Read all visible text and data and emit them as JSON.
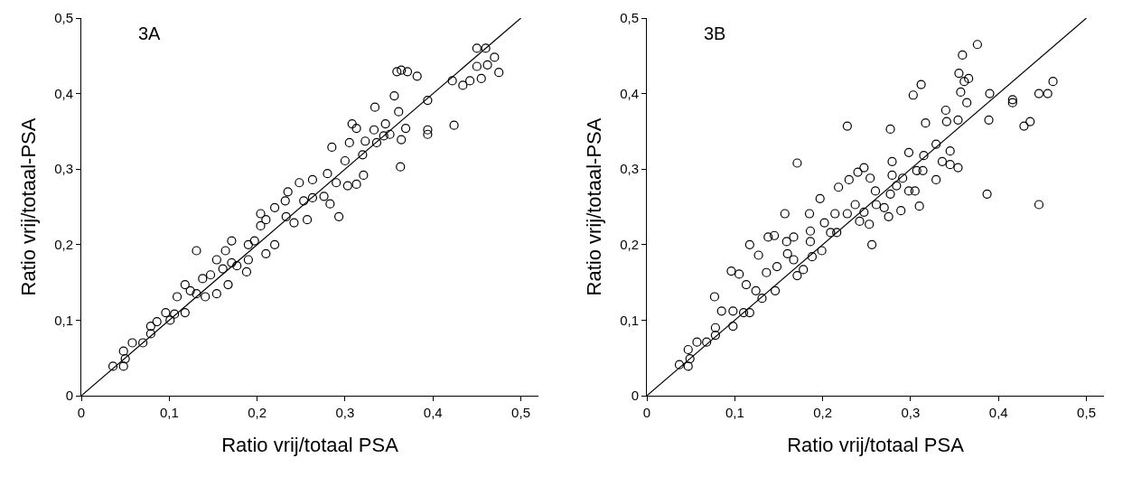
{
  "chart_data": [
    {
      "type": "scatter",
      "annotations": [
        "3A"
      ],
      "xlabel": "Ratio vrij/totaal PSA",
      "ylabel": "Ratio vrij/totaal-PSA",
      "xlim": [
        0,
        0.52
      ],
      "ylim": [
        0,
        0.5
      ],
      "xticks": [
        0,
        {
          "value": 0.1,
          "label": "0,1"
        },
        {
          "value": 0.2,
          "label": "0,2"
        },
        {
          "value": 0.3,
          "label": "0,3"
        },
        {
          "value": 0.4,
          "label": "0,4"
        },
        {
          "value": 0.5,
          "label": "0,5"
        }
      ],
      "yticks": [
        0,
        {
          "value": 0.1,
          "label": "0,1"
        },
        {
          "value": 0.2,
          "label": "0,2"
        },
        {
          "value": 0.3,
          "label": "0,3"
        },
        {
          "value": 0.4,
          "label": "0,4"
        },
        {
          "value": 0.5,
          "label": "0,5"
        }
      ],
      "grid": false,
      "marker": "circle",
      "series": [
        {
          "color": "#000000",
          "x": [
            0.036,
            0.048,
            0.048,
            0.05,
            0.058,
            0.07,
            0.079,
            0.079,
            0.086,
            0.096,
            0.101,
            0.106,
            0.118,
            0.109,
            0.118,
            0.124,
            0.131,
            0.131,
            0.141,
            0.138,
            0.147,
            0.154,
            0.154,
            0.161,
            0.167,
            0.171,
            0.171,
            0.164,
            0.177,
            0.188,
            0.19,
            0.19,
            0.197,
            0.204,
            0.204,
            0.21,
            0.21,
            0.22,
            0.22,
            0.232,
            0.235,
            0.233,
            0.242,
            0.257,
            0.248,
            0.263,
            0.253,
            0.263,
            0.276,
            0.283,
            0.293,
            0.285,
            0.28,
            0.29,
            0.303,
            0.313,
            0.321,
            0.3,
            0.305,
            0.308,
            0.313,
            0.32,
            0.323,
            0.333,
            0.336,
            0.334,
            0.346,
            0.344,
            0.351,
            0.356,
            0.359,
            0.364,
            0.371,
            0.382,
            0.361,
            0.363,
            0.364,
            0.369,
            0.394,
            0.394,
            0.394,
            0.422,
            0.424,
            0.434,
            0.442,
            0.45,
            0.45,
            0.46,
            0.47,
            0.462,
            0.475,
            0.455
          ],
          "values": [
            0.039,
            0.039,
            0.059,
            0.049,
            0.07,
            0.07,
            0.082,
            0.092,
            0.098,
            0.11,
            0.1,
            0.108,
            0.11,
            0.131,
            0.147,
            0.139,
            0.192,
            0.135,
            0.131,
            0.155,
            0.16,
            0.135,
            0.18,
            0.168,
            0.147,
            0.205,
            0.176,
            0.192,
            0.172,
            0.164,
            0.18,
            0.2,
            0.205,
            0.241,
            0.225,
            0.233,
            0.188,
            0.2,
            0.249,
            0.258,
            0.27,
            0.237,
            0.229,
            0.233,
            0.282,
            0.286,
            0.258,
            0.262,
            0.264,
            0.254,
            0.237,
            0.329,
            0.294,
            0.282,
            0.278,
            0.28,
            0.292,
            0.311,
            0.335,
            0.36,
            0.354,
            0.319,
            0.337,
            0.352,
            0.335,
            0.382,
            0.36,
            0.344,
            0.346,
            0.397,
            0.429,
            0.431,
            0.429,
            0.423,
            0.376,
            0.303,
            0.339,
            0.354,
            0.391,
            0.352,
            0.346,
            0.417,
            0.358,
            0.411,
            0.417,
            0.46,
            0.436,
            0.46,
            0.448,
            0.438,
            0.428,
            0.42
          ]
        },
        {
          "type": "line",
          "color": "#000000",
          "marker": "none",
          "x": [
            0,
            0.5
          ],
          "values": [
            0,
            0.5
          ]
        }
      ]
    },
    {
      "type": "scatter",
      "annotations": [
        "3B"
      ],
      "xlabel": "Ratio vrij/totaal PSA",
      "ylabel": "Ratio vrij/totaal-PSA",
      "xlim": [
        0,
        0.52
      ],
      "ylim": [
        0,
        0.5
      ],
      "xticks": [
        0,
        {
          "value": 0.1,
          "label": "0,1"
        },
        {
          "value": 0.2,
          "label": "0,2"
        },
        {
          "value": 0.3,
          "label": "0,3"
        },
        {
          "value": 0.4,
          "label": "0,4"
        },
        {
          "value": 0.5,
          "label": "0,5"
        }
      ],
      "yticks": [
        0,
        {
          "value": 0.1,
          "label": "0,1"
        },
        {
          "value": 0.2,
          "label": "0,2"
        },
        {
          "value": 0.3,
          "label": "0,3"
        },
        {
          "value": 0.4,
          "label": "0,4"
        },
        {
          "value": 0.5,
          "label": "0,5"
        }
      ],
      "grid": false,
      "marker": "circle",
      "series": [
        {
          "color": "#000000",
          "x": [
            0.037,
            0.047,
            0.047,
            0.049,
            0.057,
            0.068,
            0.078,
            0.078,
            0.077,
            0.085,
            0.098,
            0.098,
            0.096,
            0.105,
            0.11,
            0.117,
            0.113,
            0.117,
            0.127,
            0.124,
            0.131,
            0.138,
            0.136,
            0.145,
            0.146,
            0.148,
            0.157,
            0.159,
            0.16,
            0.167,
            0.167,
            0.171,
            0.171,
            0.178,
            0.185,
            0.186,
            0.186,
            0.188,
            0.197,
            0.199,
            0.202,
            0.209,
            0.214,
            0.218,
            0.216,
            0.228,
            0.228,
            0.23,
            0.237,
            0.24,
            0.242,
            0.247,
            0.247,
            0.253,
            0.254,
            0.256,
            0.26,
            0.261,
            0.27,
            0.275,
            0.277,
            0.277,
            0.279,
            0.279,
            0.284,
            0.289,
            0.291,
            0.298,
            0.298,
            0.303,
            0.305,
            0.307,
            0.31,
            0.312,
            0.314,
            0.315,
            0.317,
            0.329,
            0.329,
            0.336,
            0.34,
            0.341,
            0.345,
            0.345,
            0.354,
            0.354,
            0.355,
            0.357,
            0.359,
            0.361,
            0.366,
            0.364,
            0.376,
            0.387,
            0.389,
            0.39,
            0.416,
            0.416,
            0.429,
            0.436,
            0.446,
            0.446,
            0.456,
            0.462
          ],
          "values": [
            0.041,
            0.039,
            0.061,
            0.049,
            0.071,
            0.071,
            0.08,
            0.09,
            0.131,
            0.112,
            0.092,
            0.112,
            0.165,
            0.161,
            0.11,
            0.11,
            0.147,
            0.2,
            0.186,
            0.139,
            0.129,
            0.21,
            0.163,
            0.212,
            0.139,
            0.171,
            0.241,
            0.204,
            0.188,
            0.21,
            0.18,
            0.159,
            0.308,
            0.167,
            0.241,
            0.218,
            0.204,
            0.184,
            0.261,
            0.192,
            0.229,
            0.216,
            0.241,
            0.276,
            0.216,
            0.357,
            0.241,
            0.286,
            0.253,
            0.296,
            0.231,
            0.302,
            0.243,
            0.227,
            0.288,
            0.2,
            0.271,
            0.253,
            0.249,
            0.237,
            0.267,
            0.353,
            0.31,
            0.292,
            0.278,
            0.245,
            0.288,
            0.271,
            0.322,
            0.398,
            0.271,
            0.298,
            0.251,
            0.412,
            0.298,
            0.318,
            0.361,
            0.333,
            0.286,
            0.31,
            0.378,
            0.363,
            0.324,
            0.306,
            0.302,
            0.365,
            0.427,
            0.402,
            0.451,
            0.416,
            0.42,
            0.388,
            0.465,
            0.267,
            0.365,
            0.4,
            0.392,
            0.388,
            0.357,
            0.363,
            0.4,
            0.253,
            0.4,
            0.416
          ]
        },
        {
          "type": "line",
          "color": "#000000",
          "marker": "none",
          "x": [
            0,
            0.5
          ],
          "values": [
            0,
            0.5
          ]
        }
      ]
    }
  ]
}
